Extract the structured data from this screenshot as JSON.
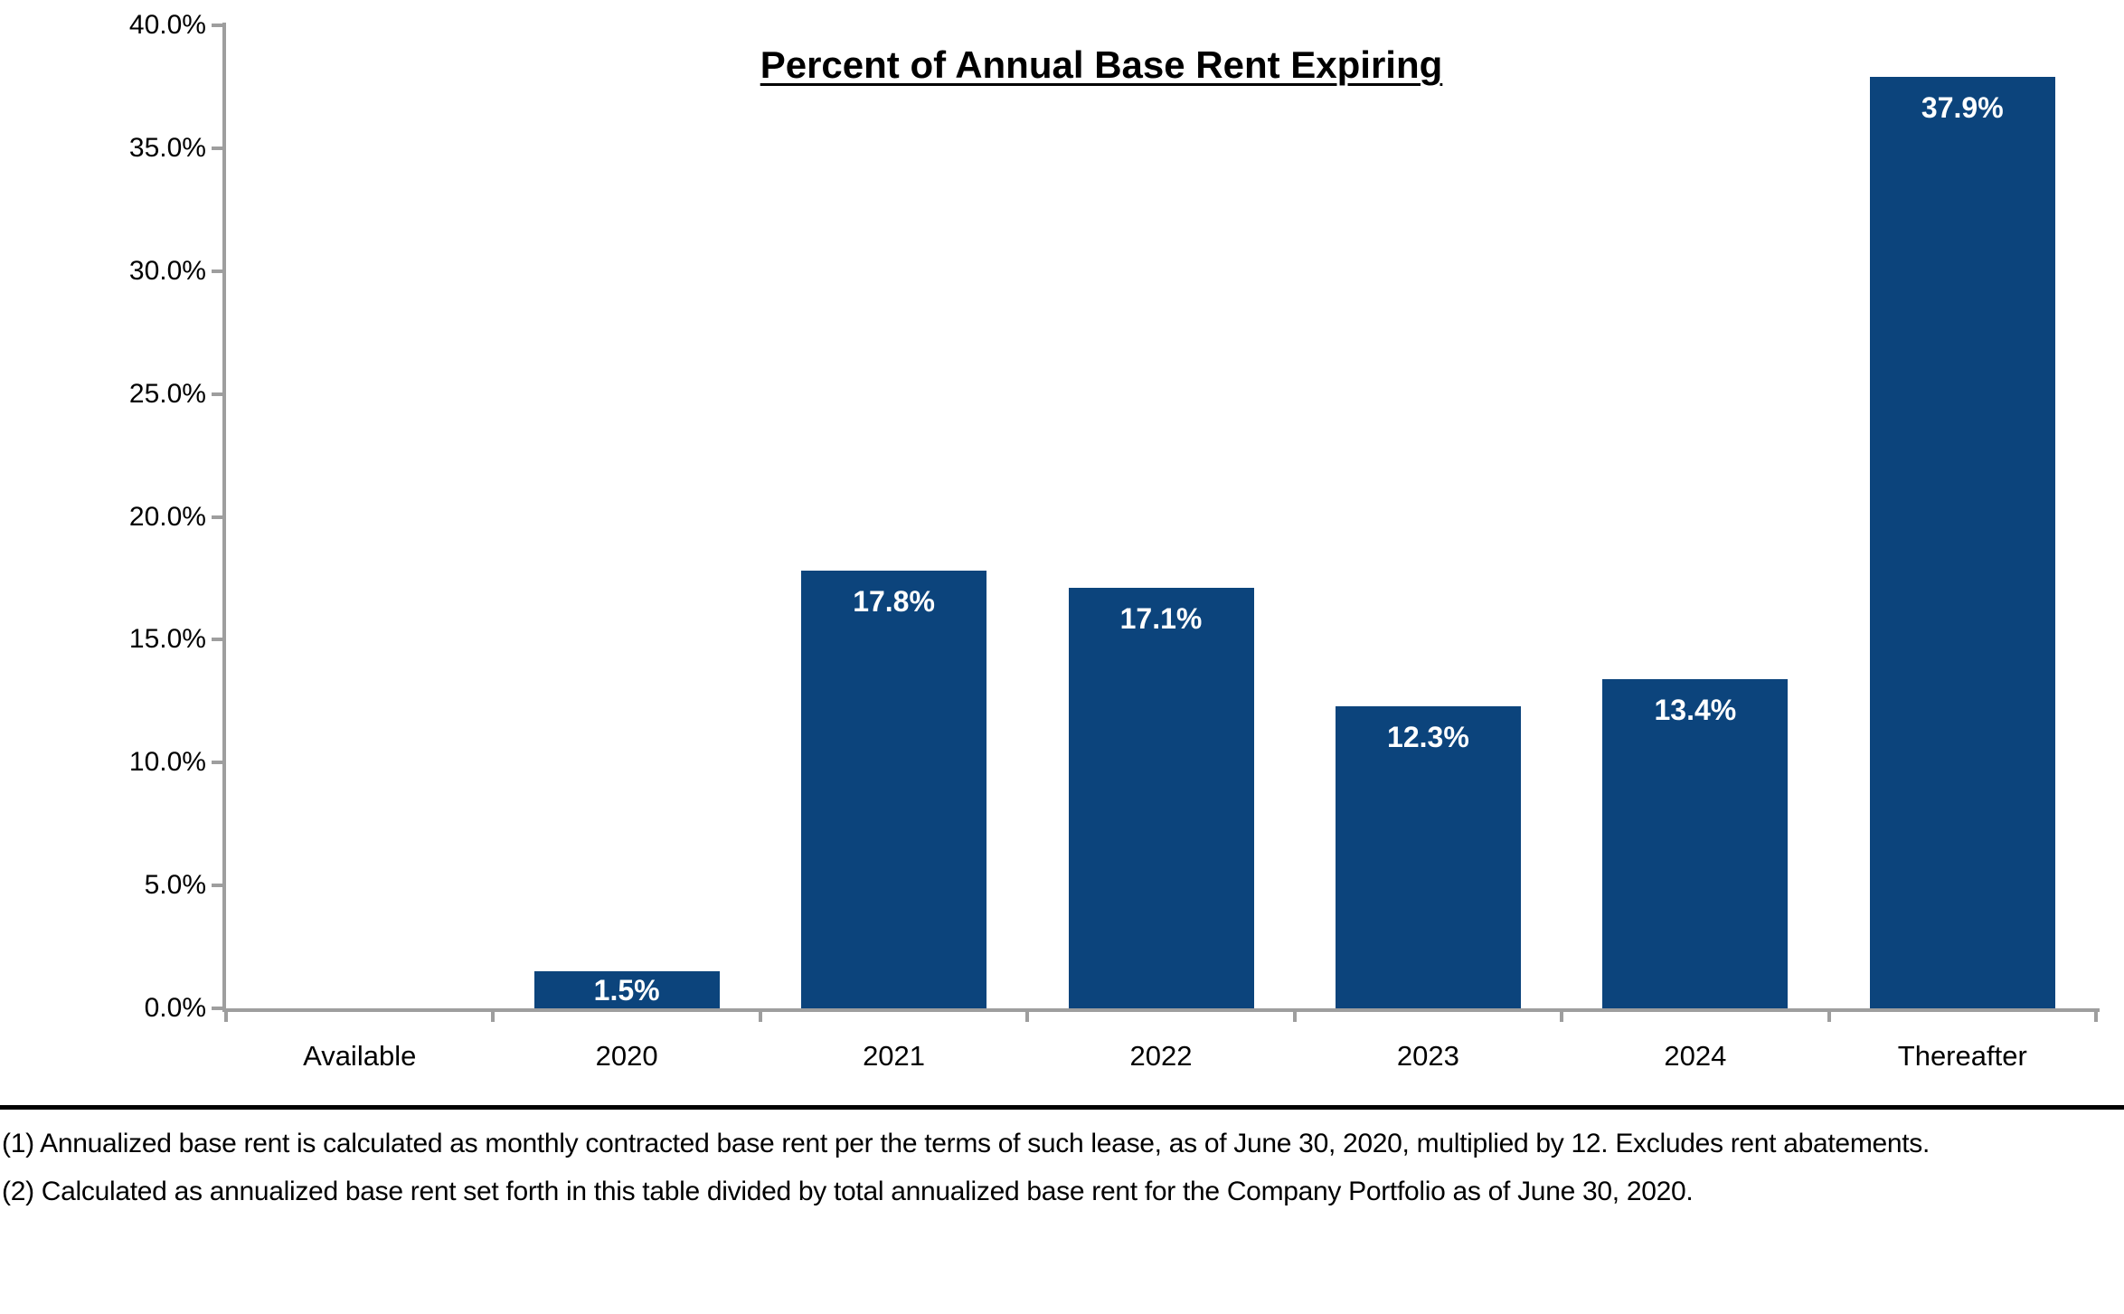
{
  "chart_data": {
    "type": "bar",
    "title": "Percent of Annual Base Rent Expiring",
    "categories": [
      "Available",
      "2020",
      "2021",
      "2022",
      "2023",
      "2024",
      "Thereafter"
    ],
    "values": [
      0.0,
      1.5,
      17.8,
      17.1,
      12.3,
      13.4,
      37.9
    ],
    "bar_labels": [
      "",
      "1.5%",
      "17.8%",
      "17.1%",
      "12.3%",
      "13.4%",
      "37.9%"
    ],
    "xlabel": "",
    "ylabel": "",
    "ylim": [
      0,
      40
    ],
    "y_tick_step": 5,
    "y_tick_labels": [
      "0.0%",
      "5.0%",
      "10.0%",
      "15.0%",
      "20.0%",
      "25.0%",
      "30.0%",
      "35.0%",
      "40.0%"
    ],
    "grid": false,
    "legend": false,
    "bar_color": "#0c447c",
    "value_label_color": "#ffffff",
    "axis_color": "#9e9e9e"
  },
  "footnotes": [
    "(1) Annualized base rent is calculated as monthly contracted base rent per the terms of such lease, as of June 30, 2020, multiplied by 12. Excludes rent abatements.",
    "(2) Calculated as annualized base rent set forth in this table divided by total annualized base rent for the Company Portfolio as of June 30, 2020."
  ]
}
